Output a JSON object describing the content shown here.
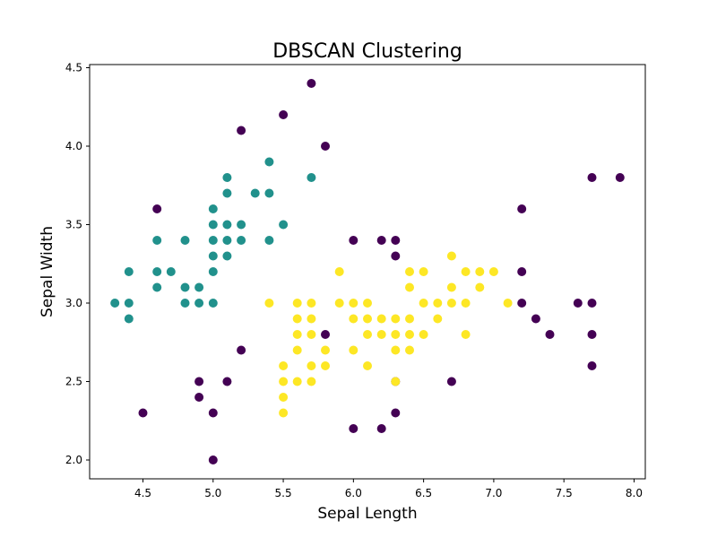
{
  "chart_data": {
    "type": "scatter",
    "title": "DBSCAN Clustering",
    "xlabel": "Sepal Length",
    "ylabel": "Sepal Width",
    "xlim": [
      4.12,
      8.08
    ],
    "ylim": [
      1.88,
      4.52
    ],
    "grid": false,
    "xticks": [
      "4.5",
      "5.0",
      "5.5",
      "6.0",
      "6.5",
      "7.0",
      "7.5",
      "8.0"
    ],
    "yticks": [
      "2.0",
      "2.5",
      "3.0",
      "3.5",
      "4.0",
      "4.5"
    ],
    "colors": {
      "noise": "#440154",
      "cluster_0": "#21918c",
      "cluster_1": "#fde725"
    },
    "series": [
      {
        "color_key": "noise",
        "points": [
          [
            5.7,
            4.4
          ],
          [
            5.5,
            4.2
          ],
          [
            5.2,
            4.1
          ],
          [
            5.8,
            4.0
          ],
          [
            4.6,
            3.6
          ],
          [
            7.7,
            3.8
          ],
          [
            7.9,
            3.8
          ],
          [
            7.2,
            3.6
          ],
          [
            6.0,
            3.4
          ],
          [
            6.2,
            3.4
          ],
          [
            6.3,
            3.4
          ],
          [
            6.3,
            3.3
          ],
          [
            7.2,
            3.2
          ],
          [
            7.2,
            3.0
          ],
          [
            7.6,
            3.0
          ],
          [
            7.7,
            3.0
          ],
          [
            7.3,
            2.9
          ],
          [
            7.4,
            2.8
          ],
          [
            7.7,
            2.8
          ],
          [
            7.7,
            2.6
          ],
          [
            5.2,
            2.7
          ],
          [
            5.8,
            2.8
          ],
          [
            4.9,
            2.5
          ],
          [
            5.1,
            2.5
          ],
          [
            6.3,
            2.5
          ],
          [
            6.7,
            2.5
          ],
          [
            4.9,
            2.4
          ],
          [
            4.5,
            2.3
          ],
          [
            5.0,
            2.3
          ],
          [
            6.3,
            2.3
          ],
          [
            6.0,
            2.2
          ],
          [
            6.2,
            2.2
          ],
          [
            5.0,
            2.0
          ]
        ]
      },
      {
        "color_key": "cluster_0",
        "points": [
          [
            5.4,
            3.9
          ],
          [
            5.1,
            3.8
          ],
          [
            5.7,
            3.8
          ],
          [
            5.1,
            3.7
          ],
          [
            5.3,
            3.7
          ],
          [
            5.4,
            3.7
          ],
          [
            5.0,
            3.6
          ],
          [
            5.0,
            3.5
          ],
          [
            5.1,
            3.5
          ],
          [
            5.2,
            3.5
          ],
          [
            5.5,
            3.5
          ],
          [
            4.6,
            3.4
          ],
          [
            4.8,
            3.4
          ],
          [
            5.0,
            3.4
          ],
          [
            5.1,
            3.4
          ],
          [
            5.2,
            3.4
          ],
          [
            5.4,
            3.4
          ],
          [
            5.0,
            3.3
          ],
          [
            5.1,
            3.3
          ],
          [
            4.4,
            3.2
          ],
          [
            4.6,
            3.2
          ],
          [
            4.7,
            3.2
          ],
          [
            5.0,
            3.2
          ],
          [
            4.6,
            3.1
          ],
          [
            4.8,
            3.1
          ],
          [
            4.9,
            3.1
          ],
          [
            4.3,
            3.0
          ],
          [
            4.4,
            3.0
          ],
          [
            4.8,
            3.0
          ],
          [
            4.9,
            3.0
          ],
          [
            5.0,
            3.0
          ],
          [
            4.4,
            2.9
          ]
        ]
      },
      {
        "color_key": "cluster_1",
        "points": [
          [
            6.7,
            3.3
          ],
          [
            5.9,
            3.2
          ],
          [
            6.4,
            3.2
          ],
          [
            6.5,
            3.2
          ],
          [
            6.8,
            3.2
          ],
          [
            6.9,
            3.2
          ],
          [
            7.0,
            3.2
          ],
          [
            6.4,
            3.1
          ],
          [
            6.7,
            3.1
          ],
          [
            6.9,
            3.1
          ],
          [
            5.4,
            3.0
          ],
          [
            5.6,
            3.0
          ],
          [
            5.7,
            3.0
          ],
          [
            5.9,
            3.0
          ],
          [
            6.0,
            3.0
          ],
          [
            6.1,
            3.0
          ],
          [
            6.5,
            3.0
          ],
          [
            6.6,
            3.0
          ],
          [
            6.7,
            3.0
          ],
          [
            6.8,
            3.0
          ],
          [
            7.1,
            3.0
          ],
          [
            5.6,
            2.9
          ],
          [
            5.7,
            2.9
          ],
          [
            6.0,
            2.9
          ],
          [
            6.1,
            2.9
          ],
          [
            6.2,
            2.9
          ],
          [
            6.3,
            2.9
          ],
          [
            6.4,
            2.9
          ],
          [
            6.6,
            2.9
          ],
          [
            5.6,
            2.8
          ],
          [
            5.7,
            2.8
          ],
          [
            6.1,
            2.8
          ],
          [
            6.2,
            2.8
          ],
          [
            6.3,
            2.8
          ],
          [
            6.4,
            2.8
          ],
          [
            6.5,
            2.8
          ],
          [
            6.8,
            2.8
          ],
          [
            5.6,
            2.7
          ],
          [
            5.8,
            2.7
          ],
          [
            6.0,
            2.7
          ],
          [
            6.3,
            2.7
          ],
          [
            6.4,
            2.7
          ],
          [
            5.5,
            2.6
          ],
          [
            5.7,
            2.6
          ],
          [
            5.8,
            2.6
          ],
          [
            6.1,
            2.6
          ],
          [
            5.5,
            2.5
          ],
          [
            5.6,
            2.5
          ],
          [
            5.7,
            2.5
          ],
          [
            6.3,
            2.5
          ],
          [
            5.5,
            2.4
          ],
          [
            5.5,
            2.3
          ]
        ]
      }
    ]
  }
}
